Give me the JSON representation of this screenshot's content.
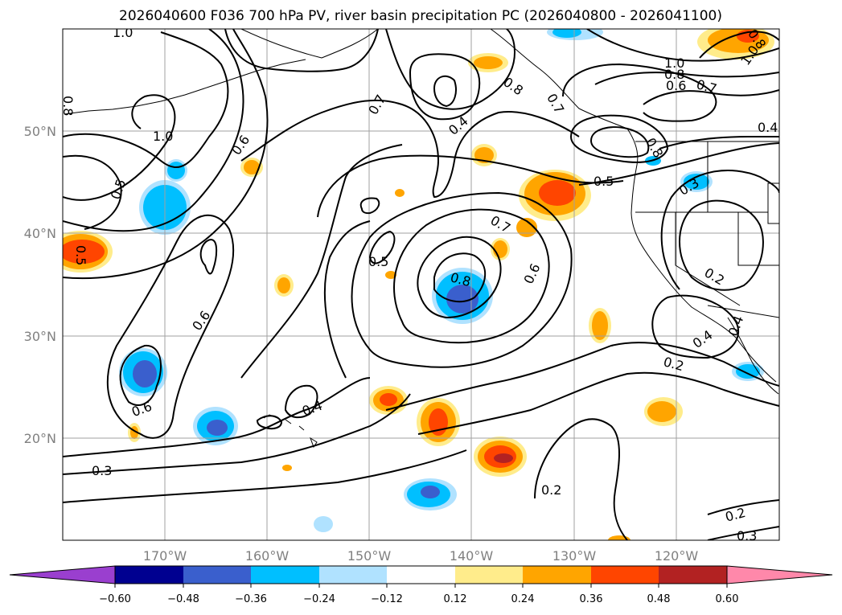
{
  "title": "2026040600 F036 700 hPa PV, river basin precipitation PC (2026040800 - 2026041100)",
  "latitude_labels": [
    "50°N",
    "40°N",
    "30°N",
    "20°N"
  ],
  "longitude_labels": [
    "170°W",
    "160°W",
    "150°W",
    "140°W",
    "130°W",
    "120°W"
  ],
  "colorbar": {
    "ticks": [
      "−0.60",
      "−0.48",
      "−0.36",
      "−0.24",
      "−0.12",
      "0.12",
      "0.24",
      "0.36",
      "0.48",
      "0.60"
    ],
    "colors": [
      "#9a3fcf",
      "#000090",
      "#3a5fcd",
      "#00bfff",
      "#b0e2ff",
      "#ffffff",
      "#ffec8b",
      "#ffa500",
      "#ff4500",
      "#b22222",
      "#ff88aa"
    ]
  },
  "contour_labels": [
    "1.0",
    "0.8",
    "1.0",
    "0.5",
    "0.6",
    "0.7",
    "0.4",
    "0.8",
    "0.7",
    "0.8",
    "1.0",
    "0.8",
    "0.6",
    "0.7",
    "1.0",
    "0.4",
    "0.5",
    "0.5",
    "0.7",
    "0.8",
    "0.6",
    "0.5",
    "0.6",
    "0.6",
    "0.4",
    "0.3",
    "0.3",
    "0.2",
    "0.4",
    "0.4",
    "0.2",
    "0.2",
    "0.2",
    "0.3",
    "0.8"
  ],
  "colors": {
    "contour": "#000000",
    "grid": "#a0a0a0",
    "axis_label": "#808080"
  }
}
